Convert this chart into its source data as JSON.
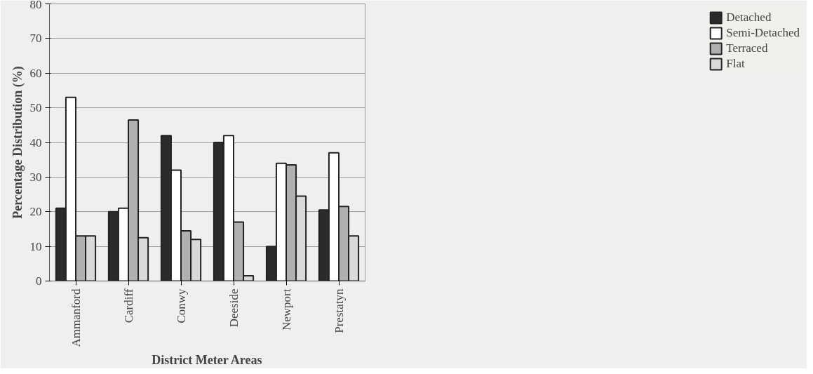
{
  "chart_data": {
    "type": "bar",
    "xlabel": "District Meter Areas",
    "ylabel": "Percentage Distribution (%)",
    "categories": [
      "Ammanford",
      "Cardiff",
      "Conwy",
      "Deeside",
      "Newport",
      "Prestatyn"
    ],
    "series": [
      {
        "name": "Detached",
        "color": "#2b2b2b",
        "values": [
          21,
          20,
          42,
          40,
          10,
          20.5
        ]
      },
      {
        "name": "Semi-Detached",
        "color": "#ffffff",
        "values": [
          53,
          21,
          32,
          42,
          34,
          37
        ]
      },
      {
        "name": "Terraced",
        "color": "#b0b0b0",
        "values": [
          13,
          46.5,
          14.5,
          17,
          33.5,
          21.5
        ]
      },
      {
        "name": "Flat",
        "color": "#d9d9d9",
        "values": [
          13,
          12.5,
          12,
          1.5,
          24.5,
          13
        ]
      }
    ],
    "ylim": [
      0,
      80
    ],
    "yticks": [
      0,
      10,
      20,
      30,
      40,
      50,
      60,
      70,
      80
    ],
    "grid": "y",
    "legend": "right"
  }
}
